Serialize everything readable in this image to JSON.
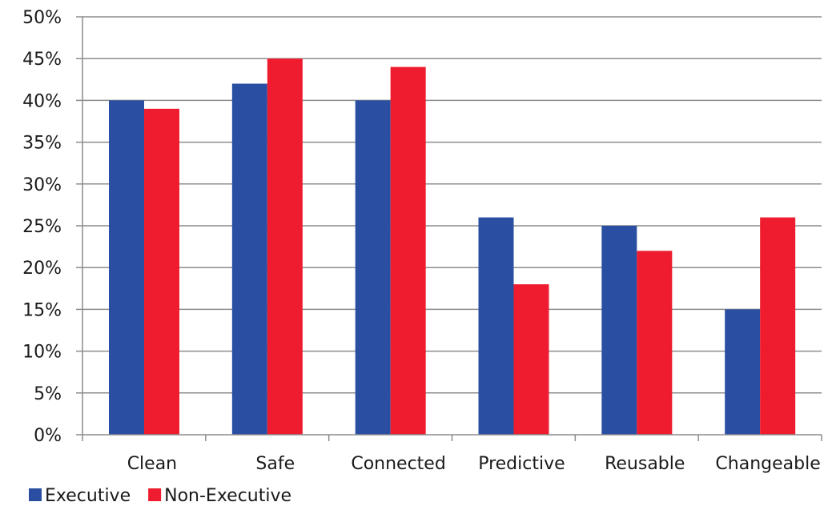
{
  "chart_data": {
    "type": "bar",
    "title": "",
    "xlabel": "",
    "ylabel": "",
    "categories": [
      "Clean",
      "Safe",
      "Connected",
      "Predictive",
      "Reusable",
      "Changeable"
    ],
    "series": [
      {
        "name": "Executive",
        "values": [
          40,
          42,
          40,
          26,
          25,
          15
        ]
      },
      {
        "name": "Non-Executive",
        "values": [
          39,
          45,
          44,
          18,
          22,
          26
        ]
      }
    ],
    "ylim": [
      0,
      50
    ],
    "y_ticks": [
      0,
      5,
      10,
      15,
      20,
      25,
      30,
      35,
      40,
      45,
      50
    ],
    "y_tick_labels": [
      "0%",
      "5%",
      "10%",
      "15%",
      "20%",
      "25%",
      "30%",
      "35%",
      "40%",
      "45%",
      "50%"
    ],
    "grid": true,
    "legend_position": "bottom-left",
    "colors": {
      "Executive": "#2a4fa2",
      "Non-Executive": "#ee1c2e",
      "grid": "#8c8c8c",
      "axis": "#8c8c8c"
    }
  }
}
